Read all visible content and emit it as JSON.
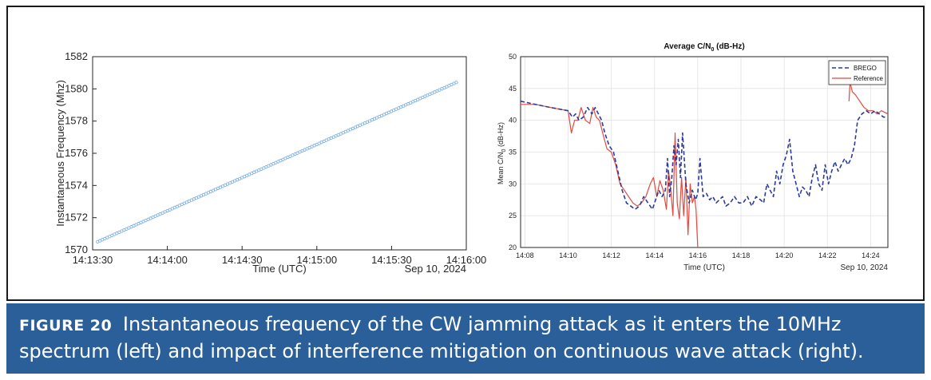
{
  "caption": {
    "label": "FIGURE 20",
    "text": "Instantaneous frequency of the CW jamming attack as it enters the 10MHz spectrum (left) and impact of interference mitigation on continuous wave attack (right).",
    "background": "#2a5f99"
  },
  "chart_data": [
    {
      "type": "scatter",
      "title": "",
      "xlabel": "Time (UTC)",
      "ylabel": "Instantaneous Frequency (Mhz)",
      "date_label": "Sep 10, 2024",
      "x_ticks": [
        "14:13:30",
        "14:14:00",
        "14:14:30",
        "14:15:00",
        "14:15:30",
        "14:16:00"
      ],
      "x_tick_seconds": [
        0,
        30,
        60,
        90,
        120,
        150
      ],
      "xlim": [
        0,
        150
      ],
      "y_ticks": [
        "1570",
        "1572",
        "1574",
        "1576",
        "1578",
        "1580",
        "1582"
      ],
      "y_tick_values": [
        1570,
        1572,
        1574,
        1576,
        1578,
        1580,
        1582
      ],
      "ylim": [
        1570,
        1582
      ],
      "series": [
        {
          "name": "Instantaneous frequency",
          "color": "#7fb2e0",
          "marker": "o",
          "x_start": 2,
          "x_end": 146,
          "y_start": 1570.5,
          "y_end": 1580.4,
          "count": 150
        }
      ]
    },
    {
      "type": "line",
      "title": "Average C/N",
      "title_sub": "0",
      "title_suffix": " (dB-Hz)",
      "xlabel": "Time (UTC)",
      "ylabel": "Mean C/N",
      "ylabel_sub": "0",
      "ylabel_suffix": " (dB-Hz)",
      "date_label": "Sep 10, 2024",
      "x_ticks": [
        "14:08",
        "14:10",
        "14:12",
        "14:14",
        "14:16",
        "14:18",
        "14:20",
        "14:22",
        "14:24"
      ],
      "x_tick_values": [
        8,
        10,
        12,
        14,
        16,
        18,
        20,
        22,
        24
      ],
      "xlim": [
        7.8,
        24.8
      ],
      "y_ticks": [
        "20",
        "25",
        "30",
        "35",
        "40",
        "45",
        "50"
      ],
      "y_tick_values": [
        20,
        25,
        30,
        35,
        40,
        45,
        50
      ],
      "ylim": [
        20,
        50
      ],
      "grid": true,
      "legend_position": "top-right",
      "series": [
        {
          "name": "BREGO",
          "color": "#2b3a9c",
          "dash": "dashed",
          "x": [
            7.8,
            8.5,
            9.2,
            10.0,
            10.2,
            10.35,
            10.5,
            10.7,
            10.9,
            11.1,
            11.25,
            11.4,
            11.55,
            11.7,
            11.9,
            12.1,
            12.3,
            12.5,
            12.7,
            12.9,
            13.1,
            13.3,
            13.5,
            13.7,
            13.9,
            14.05,
            14.2,
            14.35,
            14.5,
            14.6,
            14.7,
            14.8,
            14.9,
            15.0,
            15.1,
            15.2,
            15.3,
            15.45,
            15.6,
            15.75,
            15.9,
            16.0,
            16.1,
            16.25,
            16.4,
            16.55,
            16.7,
            16.85,
            17.0,
            17.15,
            17.3,
            17.5,
            17.7,
            17.9,
            18.1,
            18.3,
            18.5,
            18.7,
            18.9,
            19.05,
            19.2,
            19.35,
            19.5,
            19.65,
            19.8,
            19.95,
            20.1,
            20.25,
            20.4,
            20.55,
            20.7,
            20.85,
            21.0,
            21.15,
            21.3,
            21.45,
            21.6,
            21.75,
            21.9,
            22.05,
            22.2,
            22.35,
            22.5,
            22.65,
            22.8,
            22.95,
            23.1,
            23.25,
            23.4,
            23.6,
            23.8,
            24.0,
            24.2,
            24.4,
            24.6,
            24.8
          ],
          "y": [
            43,
            42.5,
            42,
            41.5,
            40.5,
            41,
            40,
            40.5,
            42,
            41,
            42,
            41,
            40,
            38,
            36,
            35,
            32,
            29,
            27,
            26.5,
            26,
            26.5,
            28,
            27,
            26,
            27.5,
            29,
            28,
            29,
            34,
            28,
            31,
            36,
            33,
            37,
            31,
            38,
            30,
            27,
            29,
            27.5,
            28.5,
            34,
            28,
            28.5,
            27.5,
            28,
            27,
            27.5,
            28,
            26.5,
            27,
            28,
            27,
            27,
            28,
            26.5,
            28,
            27.5,
            27,
            30,
            29,
            28,
            32,
            30,
            33,
            34.5,
            37,
            32,
            30,
            28,
            29.5,
            29,
            28,
            31,
            33,
            30,
            29,
            33,
            30,
            32,
            33.5,
            32,
            33,
            34,
            33,
            34,
            36,
            40,
            41,
            41.5,
            41,
            41.5,
            41,
            40.5,
            40.5
          ]
        },
        {
          "name": "Reference",
          "color": "#e04a3f",
          "dash": "solid",
          "x": [
            7.8,
            8.5,
            9.2,
            10.0,
            10.15,
            10.3,
            10.45,
            10.6,
            10.8,
            11.0,
            11.15,
            11.3,
            11.45,
            11.6,
            11.8,
            12.0,
            12.2,
            12.4,
            12.6,
            12.8,
            13.0,
            13.2,
            13.4,
            13.6,
            13.8,
            13.95,
            14.1,
            14.25,
            14.4,
            14.55,
            14.65,
            14.75,
            14.85,
            14.95,
            15.05,
            15.15,
            15.25,
            15.35,
            15.45,
            15.55,
            15.65,
            15.75,
            15.85,
            15.92,
            16.0,
            23.0,
            23.05,
            23.15,
            23.3,
            23.5,
            23.7,
            23.9,
            24.1,
            24.3,
            24.5,
            24.8
          ],
          "y": [
            42.5,
            42.5,
            42,
            41.5,
            38,
            40,
            40,
            42,
            40,
            39.5,
            42,
            40.5,
            40,
            38,
            35.5,
            35,
            33,
            30,
            29,
            28,
            27,
            26.5,
            27,
            28,
            30,
            31,
            28,
            30.5,
            29,
            26,
            32,
            29,
            25,
            38,
            27,
            24.5,
            31,
            25,
            31,
            22,
            30,
            27,
            28,
            26,
            20,
            43,
            46,
            44.5,
            44,
            43,
            42,
            41.5,
            41.5,
            41,
            41.5,
            41
          ]
        }
      ]
    }
  ]
}
